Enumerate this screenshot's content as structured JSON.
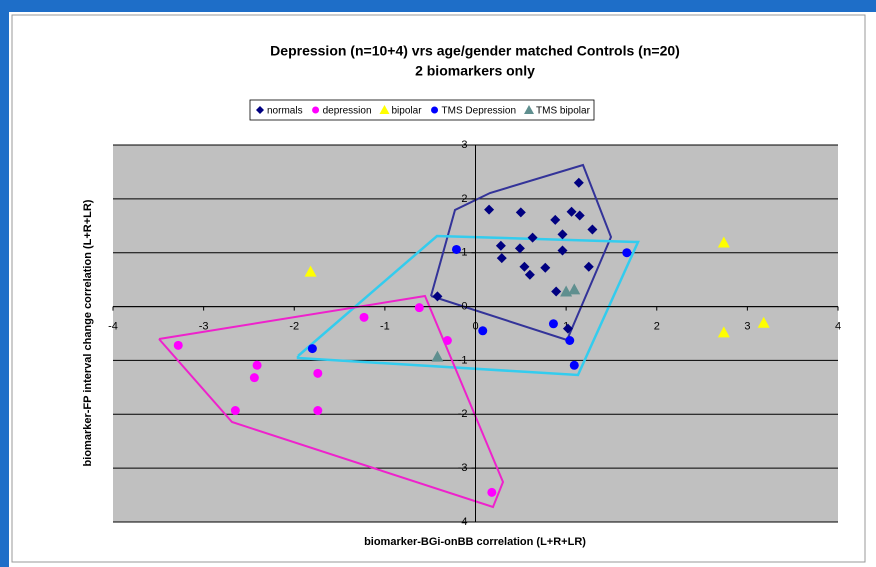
{
  "chart_data": {
    "type": "scatter",
    "title": "Depression (n=10+4) vrs age/gender matched Controls (n=20)",
    "subtitle": "2 biomarkers only",
    "x_label": "biomarker-BGi-onBB correlation (L+R+LR)",
    "y_label": "biomarker-FP interval change correlation (L+R+LR)",
    "xlim": [
      -4,
      4
    ],
    "ylim": [
      -4,
      3
    ],
    "xticks": [
      -4,
      -3,
      -2,
      -1,
      0,
      1,
      2,
      3,
      4
    ],
    "yticks": [
      -4,
      -3,
      -2,
      -1,
      0,
      1,
      2,
      3
    ],
    "grid": true,
    "legend": "top",
    "series": [
      {
        "name": "normals",
        "color": "#000080",
        "marker": "diamond",
        "x": [
          0.15,
          0.5,
          0.28,
          0.29,
          0.49,
          0.63,
          0.54,
          0.6,
          0.77,
          0.88,
          0.96,
          0.96,
          1.06,
          1.15,
          1.14,
          1.29,
          1.25,
          0.89,
          1.02,
          -0.42
        ],
        "values": [
          1.8,
          1.75,
          1.13,
          0.9,
          1.08,
          1.28,
          0.74,
          0.59,
          0.72,
          1.61,
          1.34,
          1.04,
          1.76,
          1.69,
          2.3,
          1.43,
          0.74,
          0.28,
          -0.41,
          0.19
        ]
      },
      {
        "name": "depression",
        "color": "#ff00ff",
        "marker": "circle",
        "x": [
          -3.28,
          -2.41,
          -2.44,
          -2.65,
          -1.74,
          -1.74,
          -1.23,
          -0.62,
          -0.31,
          0.18
        ],
        "values": [
          -0.72,
          -1.09,
          -1.32,
          -1.93,
          -1.24,
          -1.93,
          -0.2,
          -0.02,
          -0.63,
          -3.45
        ]
      },
      {
        "name": "bipolar",
        "color": "#ffff00",
        "marker": "triangle",
        "x": [
          -1.82,
          2.74,
          2.74,
          3.18
        ],
        "values": [
          0.65,
          1.19,
          -0.48,
          -0.3
        ]
      },
      {
        "name": "TMS Depression",
        "color": "#0000ff",
        "marker": "circle",
        "x": [
          -0.21,
          -1.8,
          0.08,
          0.86,
          1.04,
          1.09,
          1.67
        ],
        "values": [
          1.06,
          -0.78,
          -0.45,
          -0.32,
          -0.63,
          -1.09,
          1.0
        ]
      },
      {
        "name": "TMS bipolar",
        "color": "#5f8f8f",
        "marker": "triangle",
        "x": [
          -0.42,
          1.0,
          1.09
        ],
        "values": [
          -0.93,
          0.28,
          0.32
        ]
      }
    ]
  }
}
